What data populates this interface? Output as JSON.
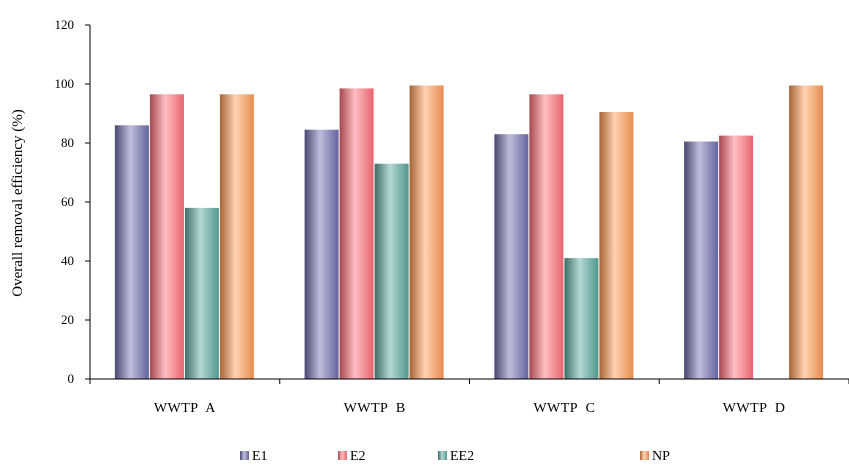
{
  "chart_data": {
    "type": "bar",
    "title": "",
    "xlabel": "",
    "ylabel": "Overall removal efficiency (%)",
    "ylim": [
      0,
      120
    ],
    "yticks": [
      0,
      20,
      40,
      60,
      80,
      100,
      120
    ],
    "grid": false,
    "legend_position": "bottom",
    "categories": [
      "WWTP  A",
      "WWTP  B",
      "WWTP  C",
      "WWTP  D"
    ],
    "series": [
      {
        "name": "E1",
        "color": "#6f6fb0",
        "values": [
          86,
          84.5,
          83,
          80.5
        ]
      },
      {
        "name": "E2",
        "color": "#ff6f7a",
        "values": [
          96.5,
          98.5,
          96.5,
          82.5
        ]
      },
      {
        "name": "EE2",
        "color": "#5aa8a0",
        "values": [
          58,
          73,
          41,
          null
        ]
      },
      {
        "name": "NP",
        "color": "#ff9a55",
        "values": [
          96.5,
          99.5,
          90.5,
          99.5
        ]
      }
    ]
  }
}
